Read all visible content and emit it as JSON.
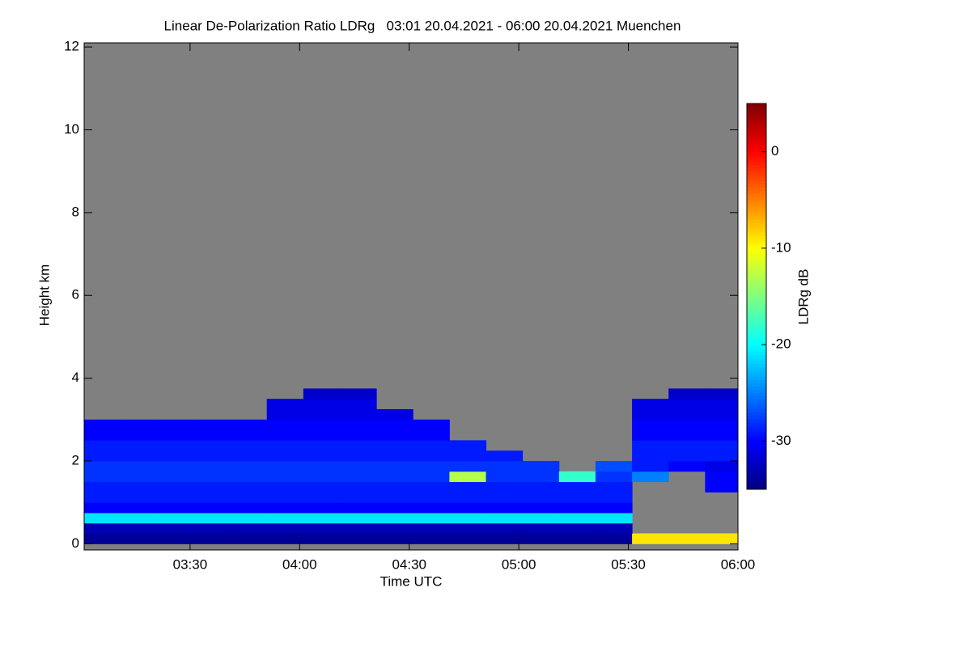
{
  "chart_data": {
    "type": "heatmap",
    "title": "Linear De-Polarization Ratio LDRg   03:01 20.04.2021 - 06:00 20.04.2021 Muenchen",
    "xlabel": "Time UTC",
    "ylabel": "Height km",
    "colorbar_label": "LDRg dB",
    "colormap": "jet",
    "missing_color": "#808080",
    "x_bins": [
      181,
      191,
      201,
      211,
      221,
      231,
      241,
      251,
      261,
      271,
      281,
      291,
      301,
      311,
      321,
      331,
      341,
      351,
      360
    ],
    "y_bins": [
      0,
      0.25,
      0.5,
      0.75,
      1.0,
      1.25,
      1.5,
      1.75,
      2.0,
      2.25,
      2.5,
      2.75,
      3.0,
      3.25,
      3.5,
      3.75
    ],
    "values": [
      [
        -34,
        -34,
        -34,
        -34,
        -34,
        -34,
        -34,
        -34,
        -34,
        -34,
        -34,
        -34,
        -34,
        -34,
        -34,
        -9,
        -9,
        -9
      ],
      [
        -33,
        -33,
        -33,
        -33,
        -33,
        -33,
        -33,
        -33,
        -33,
        -33,
        -33,
        -33,
        -33,
        -33,
        -33,
        null,
        null,
        null
      ],
      [
        -21,
        -21,
        -21,
        -21,
        -21,
        -21,
        -21,
        -21,
        -21,
        -21,
        -21,
        -21,
        -21,
        -21,
        -21,
        null,
        null,
        null
      ],
      [
        -30,
        -30,
        -30,
        -30,
        -30,
        -30,
        -30,
        -30,
        -30,
        -30,
        -30,
        -30,
        -30,
        -30,
        -30,
        null,
        null,
        null
      ],
      [
        -29,
        -29,
        -29,
        -29,
        -29,
        -29,
        -29,
        -29,
        -29,
        -29,
        -29,
        -29,
        -29,
        -29,
        -29,
        null,
        null,
        null
      ],
      [
        -29,
        -29,
        -29,
        -29,
        -29,
        -29,
        -29,
        -29,
        -29,
        -29,
        -29,
        -29,
        -29,
        -29,
        -29,
        null,
        null,
        -30
      ],
      [
        -28,
        -28,
        -28,
        -28,
        -28,
        -28,
        -28,
        -28,
        -28,
        -28,
        -13,
        -28,
        -28,
        -18,
        -28,
        -25,
        null,
        -30
      ],
      [
        -28,
        -28,
        -28,
        -28,
        -28,
        -28,
        -28,
        -28,
        -28,
        -28,
        -28,
        -28,
        -28,
        null,
        -27,
        -29,
        -30,
        -31
      ],
      [
        -29,
        -29,
        -29,
        -29,
        -29,
        -29,
        -29,
        -29,
        -29,
        -29,
        -29,
        -29,
        null,
        null,
        null,
        -29,
        -29,
        -29
      ],
      [
        -29,
        -29,
        -29,
        -29,
        -29,
        -29,
        -29,
        -29,
        -29,
        -29,
        -29,
        null,
        null,
        null,
        null,
        -29,
        -29,
        -29
      ],
      [
        -30,
        -30,
        -30,
        -30,
        -30,
        -30,
        -30,
        -30,
        -30,
        -30,
        null,
        null,
        null,
        null,
        null,
        -30,
        -30,
        -30
      ],
      [
        -30,
        -30,
        -30,
        -30,
        -30,
        -30,
        -30,
        -30,
        -30,
        -30,
        null,
        null,
        null,
        null,
        null,
        -30,
        -30,
        -30
      ],
      [
        null,
        null,
        null,
        null,
        null,
        -31,
        -31,
        -31,
        -31,
        null,
        null,
        null,
        null,
        null,
        null,
        -31,
        -31,
        -31
      ],
      [
        null,
        null,
        null,
        null,
        null,
        -31,
        -31,
        -31,
        null,
        null,
        null,
        null,
        null,
        null,
        null,
        -31,
        -31,
        -31
      ],
      [
        null,
        null,
        null,
        null,
        null,
        null,
        -32,
        -32,
        null,
        null,
        null,
        null,
        null,
        null,
        null,
        null,
        -32,
        -32
      ]
    ],
    "xlim": [
      181,
      360
    ],
    "xticks": [
      {
        "value": 210,
        "label": "03:30"
      },
      {
        "value": 240,
        "label": "04:00"
      },
      {
        "value": 270,
        "label": "04:30"
      },
      {
        "value": 300,
        "label": "05:00"
      },
      {
        "value": 330,
        "label": "05:30"
      },
      {
        "value": 360,
        "label": "06:00"
      }
    ],
    "ylim": [
      -0.15,
      12.1
    ],
    "yticks": [
      0,
      2,
      4,
      6,
      8,
      10,
      12
    ],
    "clim": [
      -35,
      5
    ],
    "cticks": [
      0,
      -10,
      -20,
      -30
    ]
  }
}
